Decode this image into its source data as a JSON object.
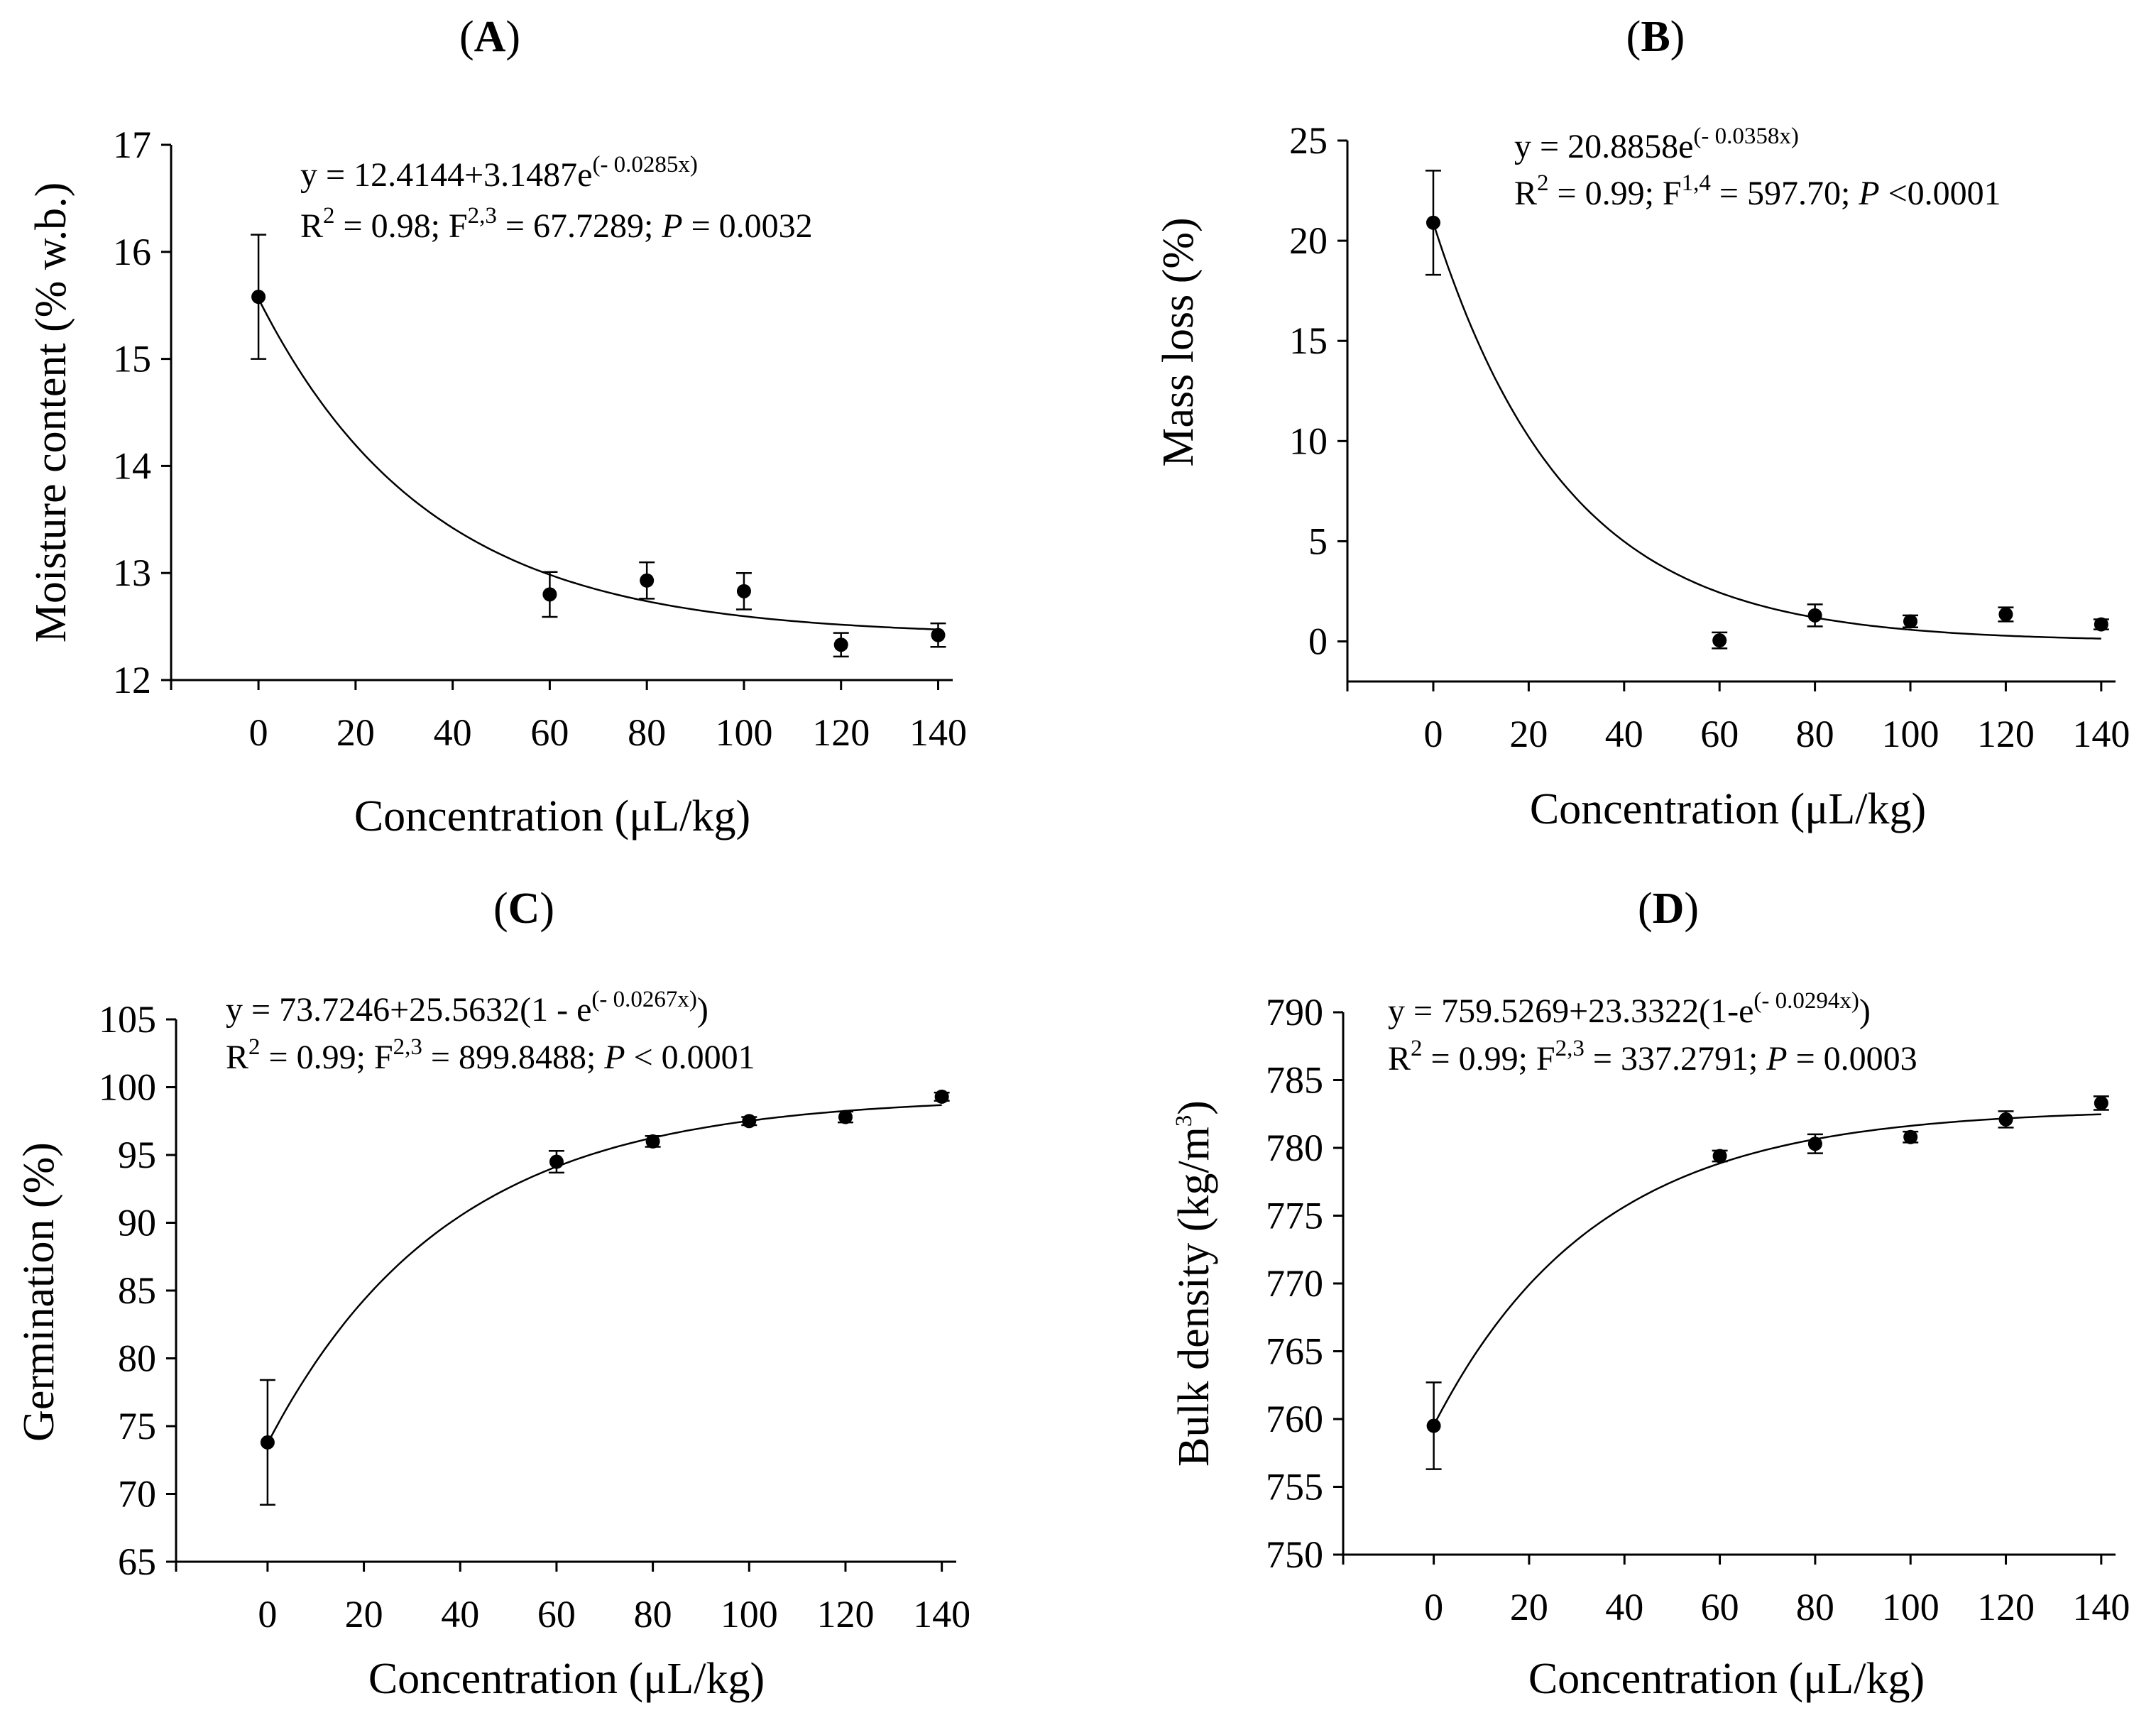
{
  "chart_data": [
    {
      "type": "scatter",
      "panel_label": "A",
      "title": "",
      "xlabel": "Concentration (μL/kg)",
      "ylabel": "Moisture content (% w.b.)",
      "xticks": [
        0,
        20,
        40,
        60,
        80,
        100,
        120,
        140
      ],
      "yticks": [
        12,
        13,
        14,
        15,
        16,
        17
      ],
      "xlim": [
        -18,
        143
      ],
      "ylim": [
        12,
        17
      ],
      "grid": false,
      "series": [
        {
          "x": [
            0,
            60,
            80,
            100,
            120,
            140
          ],
          "y": [
            15.58,
            12.8,
            12.93,
            12.83,
            12.33,
            12.42
          ],
          "error": [
            0.58,
            0.21,
            0.17,
            0.17,
            0.11,
            0.11
          ]
        }
      ],
      "fit": {
        "model": "offset-exp-decay",
        "a": 12.4144,
        "b": 3.1487,
        "k": 0.0285
      },
      "equation": {
        "line1_main": "y = 12.4144+3.1487e",
        "line1_sup": "(- 0.0285x)",
        "line2_r": "R",
        "line2_r_sup": "2",
        "line2_mid": " = 0.98; F",
        "line2_f_sup": "2,3",
        "line2_stat": " = 67.7289; ",
        "line2_p": "P",
        "line2_end": " = 0.0032"
      }
    },
    {
      "type": "scatter",
      "panel_label": "B",
      "title": "",
      "xlabel": "Concentration (μL/kg)",
      "ylabel": "Mass loss (%)",
      "xticks": [
        0,
        20,
        40,
        60,
        80,
        100,
        120,
        140
      ],
      "yticks": [
        0,
        5,
        10,
        15,
        20,
        25
      ],
      "xlim": [
        -18,
        143
      ],
      "ylim": [
        -2,
        25
      ],
      "grid": false,
      "series": [
        {
          "x": [
            0,
            60,
            80,
            100,
            120,
            140
          ],
          "y": [
            20.9,
            0.05,
            1.3,
            1.0,
            1.35,
            0.85
          ],
          "error": [
            2.6,
            0.4,
            0.55,
            0.3,
            0.35,
            0.25
          ]
        }
      ],
      "fit": {
        "model": "exp-decay",
        "a": 0,
        "b": 20.8858,
        "k": 0.0358
      },
      "equation": {
        "line1_main": "y = 20.8858e",
        "line1_sup": "(- 0.0358x)",
        "line2_r": "R",
        "line2_r_sup": "2",
        "line2_mid": " = 0.99; F",
        "line2_f_sup": "1,4",
        "line2_stat": " = 597.70; ",
        "line2_p": "P",
        "line2_end": " <0.0001"
      }
    },
    {
      "type": "scatter",
      "panel_label": "C",
      "title": "",
      "xlabel": "Concentration (μL/kg)",
      "ylabel": "Germination (%)",
      "xticks": [
        0,
        20,
        40,
        60,
        80,
        100,
        120,
        140
      ],
      "yticks": [
        65,
        70,
        75,
        80,
        85,
        90,
        95,
        100,
        105
      ],
      "xlim": [
        -19,
        143
      ],
      "ylim": [
        65,
        105
      ],
      "grid": false,
      "series": [
        {
          "x": [
            0,
            60,
            80,
            100,
            120,
            140
          ],
          "y": [
            73.8,
            94.5,
            96.0,
            97.5,
            97.8,
            99.3
          ],
          "error": [
            4.6,
            0.8,
            0.4,
            0.3,
            0.4,
            0.3
          ]
        }
      ],
      "fit": {
        "model": "exp-rise",
        "a": 73.7246,
        "b": 25.5632,
        "k": 0.0267
      },
      "equation": {
        "line1_main": "y = 73.7246+25.5632(1 - e",
        "line1_sup": "(- 0.0267x)",
        "line1_tail": ")",
        "line2_r": "R",
        "line2_r_sup": "2",
        "line2_mid": " = 0.99; F",
        "line2_f_sup": "2,3",
        "line2_stat": " = 899.8488; ",
        "line2_p": "P",
        "line2_end": " < 0.0001"
      }
    },
    {
      "type": "scatter",
      "panel_label": "D",
      "title": "",
      "xlabel": "Concentration (μL/kg)",
      "ylabel": "Bulk density (kg/m",
      "ylabel_sup": "3",
      "ylabel_end": ")",
      "xticks": [
        0,
        20,
        40,
        60,
        80,
        100,
        120,
        140
      ],
      "yticks": [
        750,
        755,
        760,
        765,
        770,
        775,
        780,
        785,
        790
      ],
      "xlim": [
        -19,
        143
      ],
      "ylim": [
        750,
        790
      ],
      "grid": false,
      "series": [
        {
          "x": [
            0,
            60,
            80,
            100,
            120,
            140
          ],
          "y": [
            759.5,
            779.4,
            780.3,
            780.8,
            782.1,
            783.3
          ],
          "error": [
            3.2,
            0.4,
            0.7,
            0.4,
            0.6,
            0.5
          ]
        }
      ],
      "fit": {
        "model": "exp-rise",
        "a": 759.5269,
        "b": 23.3322,
        "k": 0.0294
      },
      "equation": {
        "line1_main": "y = 759.5269+23.3322(1-e",
        "line1_sup": "(- 0.0294x)",
        "line1_tail": ")",
        "line2_r": "R",
        "line2_r_sup": "2",
        "line2_mid": " = 0.99; F",
        "line2_f_sup": "2,3",
        "line2_stat": " = 337.2791; ",
        "line2_p": "P",
        "line2_end": " = 0.0003"
      }
    }
  ]
}
